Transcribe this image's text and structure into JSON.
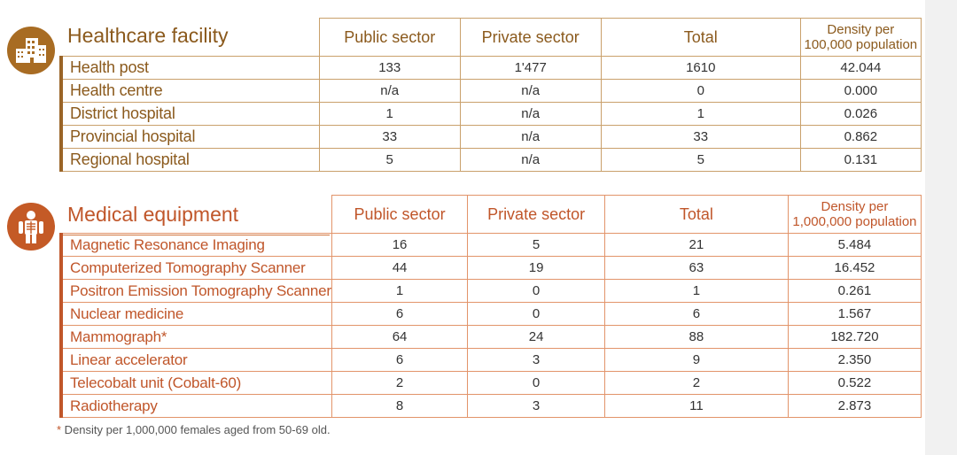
{
  "facility": {
    "title": "Healthcare facility",
    "icon": "hospital-building-icon",
    "headers": [
      "Public sector",
      "Private sector",
      "Total"
    ],
    "density_header_line1": "Density per",
    "density_header_line2": "100,000 population",
    "rows": [
      {
        "label": "Health post",
        "public": "133",
        "private": "1'477",
        "total": "1610",
        "density": "42.044"
      },
      {
        "label": "Health centre",
        "public": "n/a",
        "private": "n/a",
        "total": "0",
        "density": "0.000"
      },
      {
        "label": "District hospital",
        "public": "1",
        "private": "n/a",
        "total": "1",
        "density": "0.026"
      },
      {
        "label": "Provincial hospital",
        "public": "33",
        "private": "n/a",
        "total": "33",
        "density": "0.862"
      },
      {
        "label": "Regional hospital",
        "public": "5",
        "private": "n/a",
        "total": "5",
        "density": "0.131"
      }
    ]
  },
  "equipment": {
    "title": "Medical equipment",
    "icon": "xray-person-icon",
    "headers": [
      "Public sector",
      "Private sector",
      "Total"
    ],
    "density_header_line1": "Density per",
    "density_header_line2": "1,000,000 population",
    "rows": [
      {
        "label": "Magnetic Resonance Imaging",
        "public": "16",
        "private": "5",
        "total": "21",
        "density": "5.484"
      },
      {
        "label": "Computerized Tomography Scanner",
        "public": "44",
        "private": "19",
        "total": "63",
        "density": "16.452"
      },
      {
        "label": "Positron Emission Tomography Scanner",
        "public": "1",
        "private": "0",
        "total": "1",
        "density": "0.261"
      },
      {
        "label": "Nuclear medicine",
        "public": "6",
        "private": "0",
        "total": "6",
        "density": "1.567"
      },
      {
        "label": "Mammograph*",
        "public": "64",
        "private": "24",
        "total": "88",
        "density": "182.720"
      },
      {
        "label": "Linear accelerator",
        "public": "6",
        "private": "3",
        "total": "9",
        "density": "2.350"
      },
      {
        "label": "Telecobalt unit (Cobalt-60)",
        "public": "2",
        "private": "0",
        "total": "2",
        "density": "0.522"
      },
      {
        "label": "Radiotherapy",
        "public": "8",
        "private": "3",
        "total": "11",
        "density": "2.873"
      }
    ]
  },
  "footnote": {
    "star": "*",
    "text": " Density per 1,000,000 females aged from 50-69 old."
  },
  "colors": {
    "facility_accent": "#8b5a1d",
    "equipment_accent": "#c0562a",
    "facility_border": "#c9a06b",
    "equipment_border": "#e2946a"
  }
}
